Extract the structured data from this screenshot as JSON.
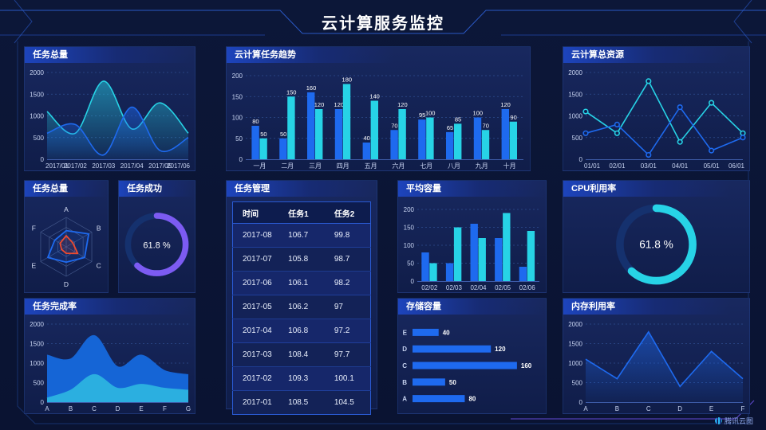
{
  "title": "云计算服务监控",
  "brand": "腾讯云图",
  "colors": {
    "accent_blue": "#1E6AEF",
    "accent_cyan": "#27D3E6",
    "gauge_purple": "#7C5BF2",
    "radar_red": "#EF4A2E",
    "gauge_track": "#15316E",
    "grid": "#2E4C8F",
    "axis_text": "#C7D3F0"
  },
  "panels": {
    "tasksTotal": {
      "title": "任务总量"
    },
    "trend": {
      "title": "云计算任务趋势"
    },
    "resources": {
      "title": "云计算总资源"
    },
    "radar": {
      "title": "任务总量"
    },
    "success": {
      "title": "任务成功"
    },
    "management": {
      "title": "任务管理"
    },
    "avgCapacity": {
      "title": "平均容量"
    },
    "cpu": {
      "title": "CPU利用率"
    },
    "completion": {
      "title": "任务完成率"
    },
    "storage": {
      "title": "存储容量"
    },
    "memory": {
      "title": "内存利用率"
    }
  },
  "table": {
    "columns": [
      "时间",
      "任务1",
      "任务2"
    ],
    "rows": [
      [
        "2017-08",
        "106.7",
        "99.8"
      ],
      [
        "2017-07",
        "105.8",
        "98.7"
      ],
      [
        "2017-06",
        "106.1",
        "98.2"
      ],
      [
        "2017-05",
        "106.2",
        "97"
      ],
      [
        "2017-04",
        "106.8",
        "97.2"
      ],
      [
        "2017-03",
        "108.4",
        "97.7"
      ],
      [
        "2017-02",
        "109.3",
        "100.1"
      ],
      [
        "2017-01",
        "108.5",
        "104.5"
      ]
    ]
  },
  "chart_data": [
    {
      "panel": "tasksTotal",
      "type": "area",
      "title": "任务总量",
      "smooth": true,
      "categories": [
        "2017/01",
        "2017/02",
        "2017/03",
        "2017/04",
        "2017/05",
        "2017/06"
      ],
      "series": [
        {
          "name": "series-cyan",
          "color": "#27D3E6",
          "values": [
            1100,
            600,
            1800,
            700,
            1300,
            600
          ]
        },
        {
          "name": "series-blue",
          "color": "#1E6AEF",
          "values": [
            600,
            800,
            100,
            1200,
            200,
            500
          ]
        }
      ],
      "ylim": [
        0,
        2000
      ],
      "yticks": [
        0,
        500,
        1000,
        1500,
        2000
      ]
    },
    {
      "panel": "trend",
      "type": "bar",
      "title": "云计算任务趋势",
      "value_labels": true,
      "categories": [
        "一月",
        "二月",
        "三月",
        "四月",
        "五月",
        "六月",
        "七月",
        "八月",
        "九月",
        "十月"
      ],
      "series": [
        {
          "name": "任务1",
          "color": "#1E6AEF",
          "values": [
            80,
            50,
            160,
            120,
            40,
            70,
            95,
            65,
            100,
            120
          ]
        },
        {
          "name": "任务2",
          "color": "#27D3E6",
          "values": [
            50,
            150,
            120,
            180,
            140,
            120,
            100,
            85,
            70,
            90
          ]
        }
      ],
      "ylim": [
        0,
        200
      ],
      "yticks": [
        0,
        50,
        100,
        150,
        200
      ]
    },
    {
      "panel": "resources",
      "type": "line",
      "title": "云计算总资源",
      "markers": true,
      "categories": [
        "01/01",
        "02/01",
        "03/01",
        "04/01",
        "05/01",
        "06/01"
      ],
      "series": [
        {
          "name": "series-cyan",
          "color": "#27D3E6",
          "values": [
            1100,
            600,
            1800,
            400,
            1300,
            600
          ]
        },
        {
          "name": "series-blue",
          "color": "#1E6AEF",
          "values": [
            600,
            800,
            100,
            1200,
            200,
            500
          ]
        }
      ],
      "ylim": [
        0,
        2000
      ],
      "yticks": [
        0,
        500,
        1000,
        1500,
        2000
      ]
    },
    {
      "panel": "radar",
      "type": "radar",
      "title": "任务总量",
      "max": 100,
      "axes": [
        "A",
        "B",
        "C",
        "D",
        "E",
        "F"
      ],
      "series": [
        {
          "name": "blue",
          "color": "#1E6AEF",
          "values": [
            55,
            88,
            72,
            52,
            72,
            45
          ]
        },
        {
          "name": "red",
          "color": "#EF4A2E",
          "values": [
            38,
            26,
            45,
            22,
            18,
            24
          ]
        }
      ]
    },
    {
      "panel": "success",
      "type": "donut",
      "title": "任务成功",
      "value": 61.8,
      "unit": "%",
      "color": "#7C5BF2"
    },
    {
      "panel": "avgCapacity",
      "type": "bar",
      "title": "平均容量",
      "categories": [
        "02/02",
        "02/03",
        "02/04",
        "02/05",
        "02/06"
      ],
      "series": [
        {
          "name": "series-blue",
          "color": "#1E6AEF",
          "values": [
            80,
            50,
            160,
            120,
            40
          ]
        },
        {
          "name": "series-cyan",
          "color": "#27D3E6",
          "values": [
            50,
            150,
            120,
            190,
            140
          ]
        }
      ],
      "ylim": [
        0,
        200
      ],
      "yticks": [
        0,
        50,
        100,
        150,
        200
      ]
    },
    {
      "panel": "cpu",
      "type": "donut",
      "title": "CPU利用率",
      "value": 61.8,
      "unit": "%",
      "color": "#27D3E6"
    },
    {
      "panel": "completion",
      "type": "area",
      "title": "任务完成率",
      "smooth": true,
      "categories": [
        "A",
        "B",
        "C",
        "D",
        "E",
        "F",
        "G"
      ],
      "series": [
        {
          "name": "upper",
          "color": "#1565D6",
          "solid": true,
          "values": [
            1200,
            1100,
            1700,
            900,
            1200,
            800,
            700
          ]
        },
        {
          "name": "lower",
          "color": "#2BAFE0",
          "solid": true,
          "values": [
            100,
            300,
            700,
            350,
            450,
            350,
            300
          ]
        }
      ],
      "ylim": [
        0,
        2000
      ],
      "yticks": [
        0,
        500,
        1000,
        1500,
        2000
      ]
    },
    {
      "panel": "storage",
      "type": "hbar",
      "title": "存储容量",
      "value_labels": true,
      "categories": [
        "E",
        "D",
        "C",
        "B",
        "A"
      ],
      "values": [
        40,
        120,
        160,
        50,
        80
      ],
      "color": "#1E6AEF",
      "xmax": 165
    },
    {
      "panel": "memory",
      "type": "line",
      "title": "内存利用率",
      "area": true,
      "categories": [
        "A",
        "B",
        "C",
        "D",
        "E",
        "F"
      ],
      "series": [
        {
          "name": "memory",
          "color": "#1E6AEF",
          "values": [
            1100,
            600,
            1800,
            400,
            1300,
            600
          ]
        }
      ],
      "ylim": [
        0,
        2000
      ],
      "yticks": [
        0,
        500,
        1000,
        1500,
        2000
      ]
    }
  ]
}
